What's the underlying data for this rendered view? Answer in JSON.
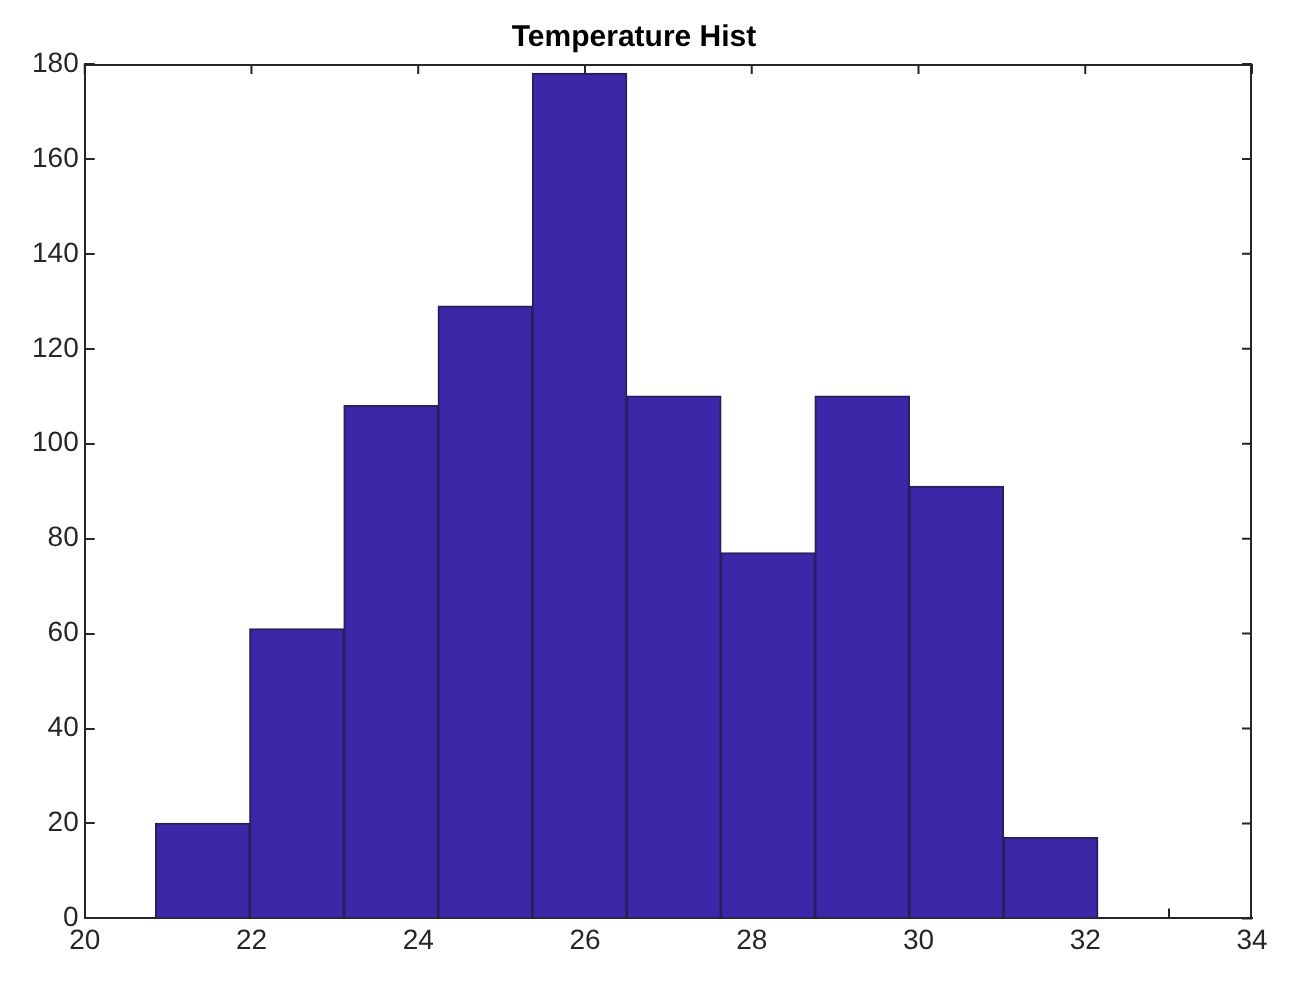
{
  "chart_data": {
    "type": "histogram",
    "title": "Temperature Hist",
    "bins": [
      20.85,
      21.98,
      23.11,
      24.24,
      25.37,
      26.5,
      27.63,
      28.76,
      29.89,
      31.02,
      32.15
    ],
    "values": [
      20,
      61,
      108,
      129,
      178,
      110,
      77,
      110,
      91,
      17
    ],
    "color": "#3b27a8",
    "xlim": [
      20,
      34
    ],
    "xticks": [
      20,
      22,
      24,
      26,
      28,
      30,
      32,
      34
    ],
    "ylim": [
      0,
      180
    ],
    "yticks": [
      0,
      20,
      40,
      60,
      80,
      100,
      120,
      140,
      160,
      180
    ],
    "grid": false,
    "legend": false
  }
}
